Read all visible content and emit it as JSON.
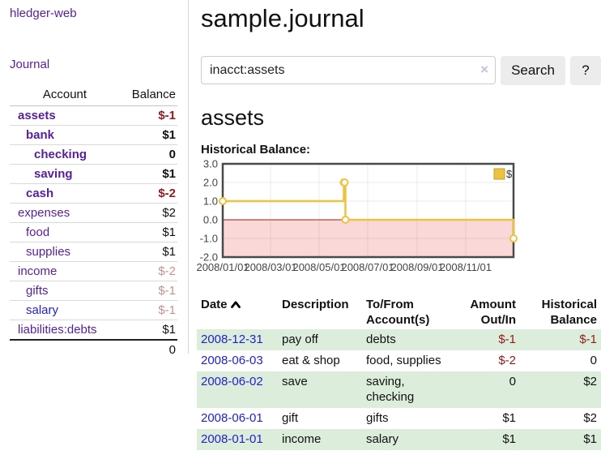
{
  "app": {
    "brand": "hledger-web",
    "nav_journal": "Journal"
  },
  "sidebar": {
    "table": {
      "headers": [
        "Account",
        "Balance"
      ],
      "rows": [
        {
          "account": "assets",
          "balance": "$-1",
          "level": 1,
          "bold": true,
          "neg": "strong"
        },
        {
          "account": "bank",
          "balance": "$1",
          "level": 2,
          "bold": true,
          "neg": null
        },
        {
          "account": "checking",
          "balance": "0",
          "level": 3,
          "bold": true,
          "neg": null
        },
        {
          "account": "saving",
          "balance": "$1",
          "level": 3,
          "bold": true,
          "neg": null
        },
        {
          "account": "cash",
          "balance": "$-2",
          "level": 2,
          "bold": true,
          "neg": "strong"
        },
        {
          "account": "expenses",
          "balance": "$2",
          "level": 1,
          "bold": false,
          "neg": null
        },
        {
          "account": "food",
          "balance": "$1",
          "level": 2,
          "bold": false,
          "neg": null
        },
        {
          "account": "supplies",
          "balance": "$1",
          "level": 2,
          "bold": false,
          "neg": null
        },
        {
          "account": "income",
          "balance": "$-2",
          "level": 1,
          "bold": false,
          "neg": "faded"
        },
        {
          "account": "gifts",
          "balance": "$-1",
          "level": 2,
          "bold": false,
          "neg": "faded"
        },
        {
          "account": "salary",
          "balance": "$-1",
          "level": 2,
          "bold": false,
          "neg": "faded",
          "link_color": "blue"
        },
        {
          "account": "liabilities:debts",
          "balance": "$1",
          "level": 1,
          "bold": false,
          "neg": null
        }
      ],
      "total": "0"
    }
  },
  "main": {
    "title": "sample.journal",
    "search": {
      "value": "inacct:assets",
      "clear_label": "×",
      "button_label": "Search",
      "help_label": "?"
    },
    "account_heading": "assets",
    "chart_label": "Historical Balance:"
  },
  "chart_data": {
    "type": "line",
    "title": "Historical Balance:",
    "series": [
      {
        "name": "$",
        "color": "#edc240",
        "step": true,
        "points": [
          [
            "2008-01-01",
            1
          ],
          [
            "2008-06-01",
            2
          ],
          [
            "2008-06-02",
            2
          ],
          [
            "2008-06-03",
            0
          ],
          [
            "2008-12-31",
            -1
          ]
        ]
      }
    ],
    "x_ticks": [
      "2008/01/01",
      "2008/03/01",
      "2008/05/01",
      "2008/07/01",
      "2008/09/01",
      "2008/11/01"
    ],
    "y_ticks": [
      3.0,
      2.0,
      1.0,
      0.0,
      -1.0,
      -2.0
    ],
    "xlim": [
      "2008-01-01",
      "2008-12-31"
    ],
    "ylim": [
      -2,
      3
    ],
    "grid": true,
    "negative_region_color": "#fbd8d8",
    "zero_line_color": "#a01515",
    "border_color": "#4a4a4a",
    "marker_fill": "#ffffff",
    "legend": {
      "label": "$",
      "position": "top-right"
    }
  },
  "register": {
    "headers": {
      "date": "Date",
      "description": "Description",
      "accounts": "To/From Account(s)",
      "amount": "Amount Out/In",
      "balance": "Historical Balance"
    },
    "rows": [
      {
        "date": "2008-12-31",
        "description": "pay off",
        "accounts": "debts",
        "amount": "$-1",
        "amount_neg": true,
        "balance": "$-1",
        "balance_neg": true
      },
      {
        "date": "2008-06-03",
        "description": "eat & shop",
        "accounts": "food, supplies",
        "amount": "$-2",
        "amount_neg": true,
        "balance": "0",
        "balance_neg": false
      },
      {
        "date": "2008-06-02",
        "description": "save",
        "accounts": "saving, checking",
        "amount": "0",
        "amount_neg": false,
        "balance": "$2",
        "balance_neg": false
      },
      {
        "date": "2008-06-01",
        "description": "gift",
        "accounts": "gifts",
        "amount": "$1",
        "amount_neg": false,
        "balance": "$2",
        "balance_neg": false
      },
      {
        "date": "2008-01-01",
        "description": "income",
        "accounts": "salary",
        "amount": "$1",
        "amount_neg": false,
        "balance": "$1",
        "balance_neg": false
      }
    ]
  }
}
